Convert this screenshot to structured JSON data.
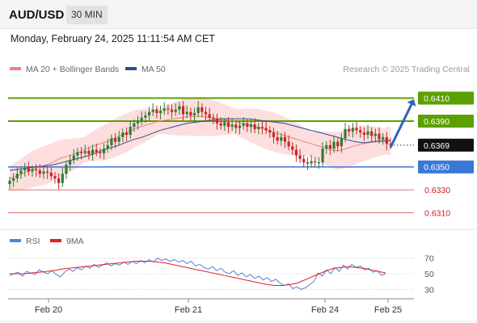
{
  "header": {
    "symbol": "AUD/USD",
    "timeframe": "30 MIN"
  },
  "datetime": "Monday, February 24, 2025 11:11:54 AM CET",
  "legend": [
    {
      "label": "MA 20 + Bollinger Bands",
      "color": "#f08080"
    },
    {
      "label": "MA 50",
      "color": "#2c4e8a"
    }
  ],
  "copyright": "Research © 2025 Trading Central",
  "colors": {
    "up": "#2e7d32",
    "down": "#c62828",
    "support": "#3a78d8",
    "resistance": "#5aa000",
    "weak": "#e07070",
    "arrow": "#2f62b8"
  },
  "chart_data": [
    {
      "type": "candlestick",
      "ylim": [
        0.6297,
        0.6428
      ],
      "levels": [
        {
          "value": 0.641,
          "label": "0.6410",
          "kind": "resistance"
        },
        {
          "value": 0.639,
          "label": "0.6390",
          "kind": "resistance"
        },
        {
          "value": 0.6369,
          "label": "0.6369",
          "kind": "current"
        },
        {
          "value": 0.635,
          "label": "0.6350",
          "kind": "support"
        },
        {
          "value": 0.633,
          "label": "0.6330",
          "kind": "weak"
        },
        {
          "value": 0.631,
          "label": "0.6310",
          "kind": "weak"
        }
      ],
      "projection": {
        "from": 0.6367,
        "to": 0.6409
      },
      "x_ticks": [
        "Feb 20",
        "Feb 21",
        "Feb 24",
        "Feb 25"
      ],
      "close": [
        0.6338,
        0.634,
        0.6344,
        0.6347,
        0.6349,
        0.6346,
        0.6348,
        0.6347,
        0.6344,
        0.6346,
        0.6345,
        0.6342,
        0.634,
        0.6336,
        0.6344,
        0.6352,
        0.6356,
        0.636,
        0.6363,
        0.6362,
        0.6364,
        0.6361,
        0.6365,
        0.6363,
        0.6362,
        0.6366,
        0.6369,
        0.6375,
        0.6372,
        0.6376,
        0.638,
        0.6378,
        0.6385,
        0.6388,
        0.639,
        0.6393,
        0.6395,
        0.6398,
        0.64,
        0.6397,
        0.6399,
        0.6401,
        0.64,
        0.6398,
        0.64,
        0.6403,
        0.6396,
        0.6398,
        0.6395,
        0.6397,
        0.6402,
        0.6398,
        0.6396,
        0.6393,
        0.6392,
        0.6388,
        0.6386,
        0.6389,
        0.6385,
        0.6387,
        0.6384,
        0.6386,
        0.6388,
        0.6385,
        0.6387,
        0.6383,
        0.6385,
        0.6384,
        0.6382,
        0.638,
        0.6376,
        0.6373,
        0.6376,
        0.6372,
        0.6368,
        0.6365,
        0.636,
        0.6357,
        0.6354,
        0.6353,
        0.6355,
        0.6354,
        0.6354,
        0.6366,
        0.6369,
        0.6366,
        0.6372,
        0.6368,
        0.6375,
        0.6383,
        0.6381,
        0.6384,
        0.6382,
        0.638,
        0.6378,
        0.6381,
        0.6377,
        0.6379,
        0.6374,
        0.6376,
        0.637,
        0.6369
      ],
      "ma20": [
        0.634,
        0.6342,
        0.6345,
        0.6348,
        0.635,
        0.6352,
        0.6355,
        0.6358,
        0.636,
        0.6362,
        0.6365,
        0.6368,
        0.637,
        0.6372,
        0.6375,
        0.6378,
        0.6381,
        0.6384,
        0.6386,
        0.6388,
        0.639,
        0.6391,
        0.6392,
        0.6393,
        0.6394,
        0.6394,
        0.6394,
        0.6393,
        0.6392,
        0.6391,
        0.639,
        0.6388,
        0.6387,
        0.6385,
        0.6383,
        0.6381,
        0.6379,
        0.6377,
        0.6375,
        0.6373,
        0.6371,
        0.6369,
        0.6367,
        0.6365,
        0.6364,
        0.6366,
        0.6368,
        0.637,
        0.6371,
        0.6372,
        0.6372,
        0.6373
      ],
      "ma50": [
        0.6347,
        0.6348,
        0.6349,
        0.635,
        0.6351,
        0.6352,
        0.6354,
        0.6356,
        0.6358,
        0.636,
        0.6363,
        0.6366,
        0.6368,
        0.6371,
        0.6374,
        0.6376,
        0.6379,
        0.6382,
        0.6384,
        0.6386,
        0.6388,
        0.6389,
        0.639,
        0.6391,
        0.6392,
        0.6392,
        0.6392,
        0.6392,
        0.6391,
        0.639,
        0.6389,
        0.6388,
        0.6386,
        0.6384,
        0.6382,
        0.638,
        0.6378,
        0.6376,
        0.6374,
        0.6372,
        0.6371,
        0.6372,
        0.6373,
        0.6373
      ]
    },
    {
      "type": "line",
      "ylim": [
        20,
        80
      ],
      "y_ticks": [
        "70",
        "50",
        "30"
      ],
      "legend": [
        {
          "label": "RSI",
          "color": "#5b7fd6"
        },
        {
          "label": "9MA",
          "color": "#dd2222"
        }
      ],
      "rsi": [
        48,
        50,
        52,
        47,
        53,
        51,
        49,
        55,
        52,
        50,
        54,
        49,
        46,
        52,
        56,
        53,
        58,
        55,
        60,
        57,
        62,
        58,
        61,
        64,
        60,
        63,
        61,
        65,
        62,
        66,
        63,
        67,
        64,
        68,
        65,
        70,
        67,
        69,
        66,
        68,
        65,
        67,
        63,
        66,
        60,
        62,
        58,
        56,
        59,
        54,
        57,
        52,
        50,
        54,
        48,
        51,
        46,
        49,
        44,
        47,
        42,
        45,
        40,
        43,
        38,
        35,
        37,
        31,
        33,
        30,
        32,
        36,
        40,
        51,
        47,
        55,
        50,
        58,
        53,
        61,
        56,
        62,
        58,
        60,
        55,
        57,
        52,
        54,
        48,
        50
      ],
      "ma9": [
        50,
        50,
        50,
        51,
        52,
        53,
        54,
        56,
        57,
        58,
        59,
        60,
        61,
        62,
        63,
        64,
        65,
        66,
        66,
        66,
        65,
        64,
        62,
        60,
        58,
        56,
        54,
        52,
        50,
        48,
        46,
        44,
        42,
        40,
        38,
        36,
        35,
        35,
        36,
        38,
        42,
        46,
        50,
        54,
        57,
        58,
        59,
        58,
        57,
        55,
        53,
        51
      ]
    }
  ]
}
